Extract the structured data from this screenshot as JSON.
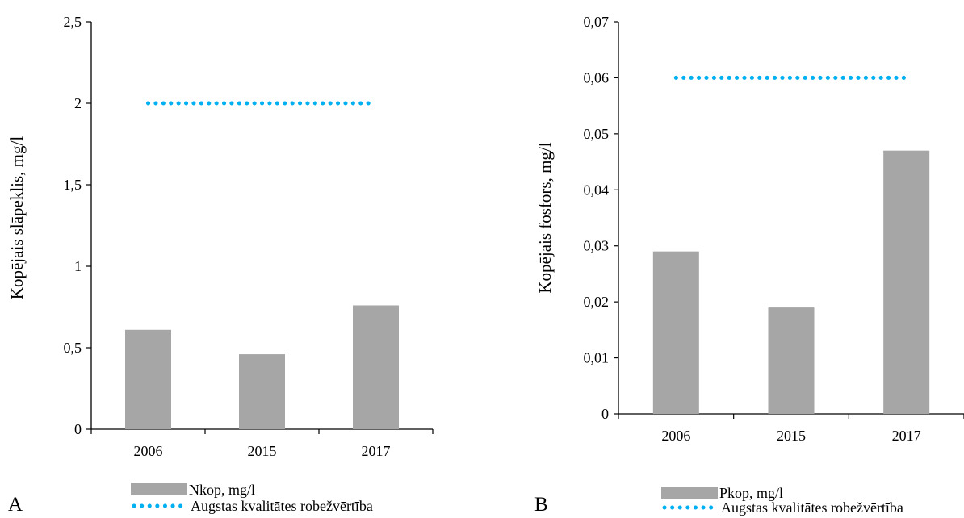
{
  "chart_data": [
    {
      "type": "bar",
      "panel_label": "A",
      "ylabel": "Kopējais slāpeklis, mg/l",
      "categories": [
        "2006",
        "2015",
        "2017"
      ],
      "ylim": [
        0,
        2.5
      ],
      "yticks": [
        "0",
        "0,5",
        "1",
        "1,5",
        "2",
        "2,5"
      ],
      "ytick_values": [
        0,
        0.5,
        1,
        1.5,
        2,
        2.5
      ],
      "series": [
        {
          "name": "Nkop, mg/l",
          "type": "bar",
          "color": "#a6a6a6",
          "values": [
            0.61,
            0.46,
            0.76
          ]
        },
        {
          "name": "Augstas kvalitātes robežvērtība",
          "type": "dotted-line",
          "color": "#00b0f0",
          "values": [
            2.0,
            2.0,
            2.0
          ]
        }
      ],
      "grid": false,
      "legend": "bottom"
    },
    {
      "type": "bar",
      "panel_label": "B",
      "ylabel": "Kopējais fosfors, mg/l",
      "categories": [
        "2006",
        "2015",
        "2017"
      ],
      "ylim": [
        0,
        0.07
      ],
      "yticks": [
        "0",
        "0,01",
        "0,02",
        "0,03",
        "0,04",
        "0,05",
        "0,06",
        "0,07"
      ],
      "ytick_values": [
        0,
        0.01,
        0.02,
        0.03,
        0.04,
        0.05,
        0.06,
        0.07
      ],
      "series": [
        {
          "name": "Pkop, mg/l",
          "type": "bar",
          "color": "#a6a6a6",
          "values": [
            0.029,
            0.019,
            0.047
          ]
        },
        {
          "name": "Augstas kvalitātes robežvērtība",
          "type": "dotted-line",
          "color": "#00b0f0",
          "values": [
            0.06,
            0.06,
            0.06
          ]
        }
      ],
      "grid": false,
      "legend": "bottom"
    }
  ]
}
